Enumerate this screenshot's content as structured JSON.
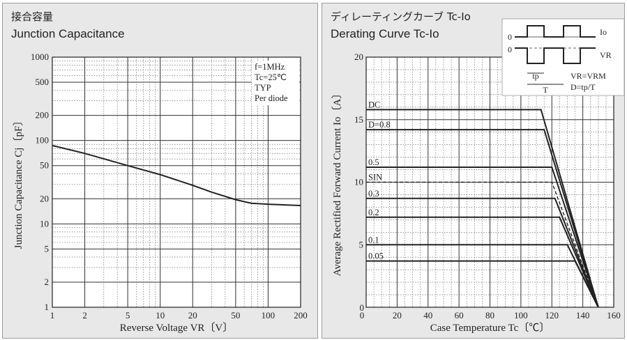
{
  "colors": {
    "panel_bg": "#e8e8e8",
    "plot_bg": "#ffffff",
    "ink": "#222222"
  },
  "chart_data": [
    {
      "type": "line",
      "title_jp": "接合容量",
      "title": "Junction Capacitance",
      "xlabel": "Reverse Voltage  VR〔V〕",
      "ylabel": "Junction Capacitance  Cj〔pF〕",
      "xscale": "log",
      "yscale": "log",
      "xlim": [
        1,
        200
      ],
      "ylim": [
        1,
        1000
      ],
      "xticks": [
        "1",
        "2",
        "5",
        "10",
        "20",
        "50",
        "100",
        "200"
      ],
      "yticks": [
        "1",
        "2",
        "5",
        "10",
        "20",
        "50",
        "100",
        "200",
        "500",
        "1000"
      ],
      "annotations": [
        "f=1MHz",
        "Tc=25℃",
        "TYP",
        "Per diode"
      ],
      "grid": true,
      "series": [
        {
          "x": [
            1,
            2,
            5,
            10,
            20,
            30,
            50,
            70,
            100,
            200
          ],
          "y": [
            87,
            70,
            50,
            39,
            29,
            24,
            19.5,
            17.7,
            17.2,
            16.6
          ]
        }
      ]
    },
    {
      "type": "line",
      "title_jp": "ディレーティングカーブ Tc-Io",
      "title": "Derating Curve Tc-Io",
      "xlabel": "Case Temperature  Tc〔℃〕",
      "ylabel": "Average Rectified Forward Current  Io〔A〕",
      "xlim": [
        0,
        160
      ],
      "ylim": [
        0,
        20
      ],
      "xticks": [
        "0",
        "20",
        "40",
        "60",
        "80",
        "100",
        "120",
        "140",
        "160"
      ],
      "yticks": [
        "0",
        "5",
        "10",
        "15",
        "20"
      ],
      "grid": true,
      "inset_labels": {
        "io": "Io",
        "vr": "VR",
        "zero1": "0",
        "zero2": "0",
        "tp": "tp",
        "T": "T",
        "vr_eq": "VR=VRM",
        "d_eq": "D=tp/T"
      },
      "series": [
        {
          "name": "DC",
          "x": [
            0,
            113,
            150
          ],
          "y": [
            15.8,
            15.8,
            0
          ]
        },
        {
          "name": "D=0.8",
          "x": [
            0,
            115,
            150
          ],
          "y": [
            14.2,
            14.2,
            0
          ]
        },
        {
          "name": "0.5",
          "x": [
            0,
            120,
            150
          ],
          "y": [
            11.2,
            11.2,
            0
          ]
        },
        {
          "name": "SIN",
          "x": [
            0,
            120,
            150
          ],
          "y": [
            10.0,
            10.0,
            0
          ],
          "dashed": true
        },
        {
          "name": "0.3",
          "x": [
            0,
            122,
            150
          ],
          "y": [
            8.7,
            8.7,
            0
          ]
        },
        {
          "name": "0.2",
          "x": [
            0,
            125,
            150
          ],
          "y": [
            7.2,
            7.2,
            0
          ]
        },
        {
          "name": "0.1",
          "x": [
            0,
            130,
            150
          ],
          "y": [
            5.0,
            5.0,
            0
          ]
        },
        {
          "name": "0.05",
          "x": [
            0,
            135,
            150
          ],
          "y": [
            3.7,
            3.7,
            0
          ]
        }
      ]
    }
  ]
}
